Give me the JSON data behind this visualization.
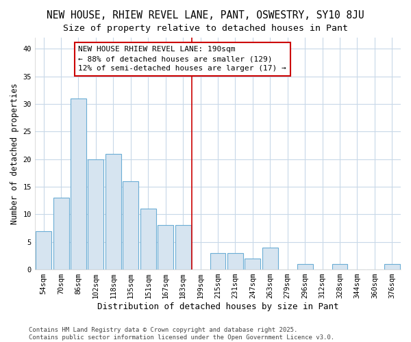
{
  "title": "NEW HOUSE, RHIEW REVEL LANE, PANT, OSWESTRY, SY10 8JU",
  "subtitle": "Size of property relative to detached houses in Pant",
  "xlabel": "Distribution of detached houses by size in Pant",
  "ylabel": "Number of detached properties",
  "bar_labels": [
    "54sqm",
    "70sqm",
    "86sqm",
    "102sqm",
    "118sqm",
    "135sqm",
    "151sqm",
    "167sqm",
    "183sqm",
    "199sqm",
    "215sqm",
    "231sqm",
    "247sqm",
    "263sqm",
    "279sqm",
    "296sqm",
    "312sqm",
    "328sqm",
    "344sqm",
    "360sqm",
    "376sqm"
  ],
  "bar_values": [
    7,
    13,
    31,
    20,
    21,
    16,
    11,
    8,
    8,
    0,
    3,
    3,
    2,
    4,
    0,
    1,
    0,
    1,
    0,
    0,
    1
  ],
  "bar_color": "#d6e4f0",
  "bar_edgecolor": "#6aadd5",
  "vline_x": 8.5,
  "vline_color": "#cc0000",
  "annotation_title": "NEW HOUSE RHIEW REVEL LANE: 190sqm",
  "annotation_line1": "← 88% of detached houses are smaller (129)",
  "annotation_line2": "12% of semi-detached houses are larger (17) →",
  "annotation_box_facecolor": "#ffffff",
  "annotation_box_edgecolor": "#cc0000",
  "ylim": [
    0,
    42
  ],
  "yticks": [
    0,
    5,
    10,
    15,
    20,
    25,
    30,
    35,
    40
  ],
  "bg_color": "#ffffff",
  "plot_bg_color": "#ffffff",
  "grid_color": "#c8d8e8",
  "footer": "Contains HM Land Registry data © Crown copyright and database right 2025.\nContains public sector information licensed under the Open Government Licence v3.0.",
  "title_fontsize": 10.5,
  "subtitle_fontsize": 9.5,
  "xlabel_fontsize": 9,
  "ylabel_fontsize": 8.5,
  "tick_fontsize": 7.5,
  "annotation_fontsize": 8,
  "footer_fontsize": 6.5
}
